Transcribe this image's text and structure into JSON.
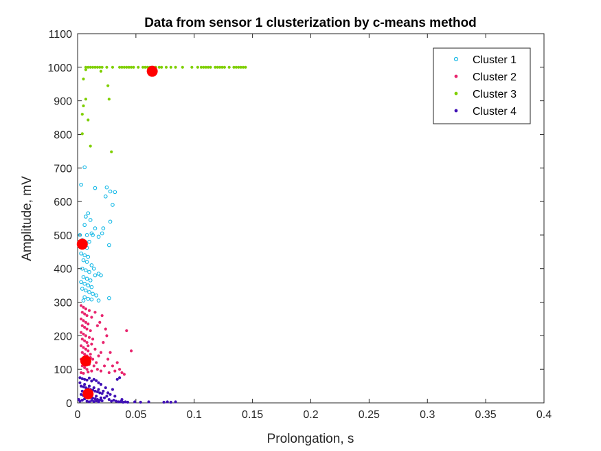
{
  "chart_data": {
    "type": "scatter",
    "title": "Data from sensor 1 clusterization by c-means method",
    "xlabel": "Prolongation, s",
    "ylabel": "Amplitude, mV",
    "xlim": [
      0,
      0.4
    ],
    "ylim": [
      0,
      1100
    ],
    "xticks": [
      0,
      0.05,
      0.1,
      0.15,
      0.2,
      0.25,
      0.3,
      0.35,
      0.4
    ],
    "xtick_labels": [
      "0",
      "0.05",
      "0.1",
      "0.15",
      "0.2",
      "0.25",
      "0.3",
      "0.35",
      "0.4"
    ],
    "yticks": [
      0,
      100,
      200,
      300,
      400,
      500,
      600,
      700,
      800,
      900,
      1000,
      1100
    ],
    "ytick_labels": [
      "0",
      "100",
      "200",
      "300",
      "400",
      "500",
      "600",
      "700",
      "800",
      "900",
      "1000",
      "1100"
    ],
    "grid": false,
    "legend_position": "top-right",
    "series": [
      {
        "name": "Cluster 1",
        "color": "#14b8e6",
        "marker": "open-circle",
        "points": [
          [
            0.003,
            650
          ],
          [
            0.006,
            702
          ],
          [
            0.015,
            640
          ],
          [
            0.025,
            642
          ],
          [
            0.028,
            630
          ],
          [
            0.032,
            628
          ],
          [
            0.009,
            565
          ],
          [
            0.007,
            555
          ],
          [
            0.011,
            545
          ],
          [
            0.015,
            520
          ],
          [
            0.006,
            530
          ],
          [
            0.012,
            505
          ],
          [
            0.021,
            505
          ],
          [
            0.028,
            540
          ],
          [
            0.024,
            615
          ],
          [
            0.03,
            590
          ],
          [
            0.002,
            500
          ],
          [
            0.008,
            500
          ],
          [
            0.013,
            500
          ],
          [
            0.022,
            520
          ],
          [
            0.027,
            470
          ],
          [
            0.004,
            485
          ],
          [
            0.01,
            480
          ],
          [
            0.018,
            495
          ],
          [
            0.003,
            445
          ],
          [
            0.006,
            440
          ],
          [
            0.009,
            435
          ],
          [
            0.005,
            425
          ],
          [
            0.008,
            420
          ],
          [
            0.012,
            410
          ],
          [
            0.004,
            400
          ],
          [
            0.007,
            395
          ],
          [
            0.01,
            390
          ],
          [
            0.015,
            380
          ],
          [
            0.018,
            385
          ],
          [
            0.02,
            380
          ],
          [
            0.005,
            375
          ],
          [
            0.008,
            370
          ],
          [
            0.011,
            365
          ],
          [
            0.006,
            355
          ],
          [
            0.009,
            350
          ],
          [
            0.012,
            345
          ],
          [
            0.004,
            340
          ],
          [
            0.007,
            335
          ],
          [
            0.01,
            330
          ],
          [
            0.013,
            325
          ],
          [
            0.016,
            320
          ],
          [
            0.006,
            315
          ],
          [
            0.009,
            310
          ],
          [
            0.012,
            308
          ],
          [
            0.018,
            305
          ],
          [
            0.027,
            312
          ],
          [
            0.005,
            305
          ],
          [
            0.003,
            360
          ],
          [
            0.014,
            400
          ],
          [
            0.008,
            462
          ]
        ]
      },
      {
        "name": "Cluster 2",
        "color": "#e8256e",
        "marker": "dot",
        "points": [
          [
            0.003,
            290
          ],
          [
            0.005,
            285
          ],
          [
            0.007,
            280
          ],
          [
            0.01,
            275
          ],
          [
            0.004,
            270
          ],
          [
            0.006,
            265
          ],
          [
            0.008,
            260
          ],
          [
            0.012,
            255
          ],
          [
            0.003,
            250
          ],
          [
            0.005,
            245
          ],
          [
            0.007,
            240
          ],
          [
            0.009,
            235
          ],
          [
            0.004,
            230
          ],
          [
            0.006,
            225
          ],
          [
            0.008,
            220
          ],
          [
            0.011,
            215
          ],
          [
            0.003,
            210
          ],
          [
            0.005,
            205
          ],
          [
            0.007,
            200
          ],
          [
            0.01,
            195
          ],
          [
            0.004,
            190
          ],
          [
            0.006,
            185
          ],
          [
            0.008,
            180
          ],
          [
            0.012,
            175
          ],
          [
            0.003,
            170
          ],
          [
            0.005,
            165
          ],
          [
            0.007,
            160
          ],
          [
            0.009,
            155
          ],
          [
            0.004,
            150
          ],
          [
            0.006,
            145
          ],
          [
            0.008,
            140
          ],
          [
            0.011,
            135
          ],
          [
            0.003,
            130
          ],
          [
            0.005,
            125
          ],
          [
            0.007,
            120
          ],
          [
            0.01,
            115
          ],
          [
            0.004,
            110
          ],
          [
            0.006,
            105
          ],
          [
            0.008,
            100
          ],
          [
            0.012,
            95
          ],
          [
            0.003,
            90
          ],
          [
            0.005,
            88
          ],
          [
            0.009,
            92
          ],
          [
            0.014,
            110
          ],
          [
            0.016,
            120
          ],
          [
            0.018,
            140
          ],
          [
            0.02,
            150
          ],
          [
            0.022,
            180
          ],
          [
            0.025,
            200
          ],
          [
            0.024,
            220
          ],
          [
            0.021,
            260
          ],
          [
            0.019,
            240
          ],
          [
            0.026,
            130
          ],
          [
            0.028,
            150
          ],
          [
            0.03,
            110
          ],
          [
            0.032,
            95
          ],
          [
            0.034,
            120
          ],
          [
            0.036,
            100
          ],
          [
            0.038,
            90
          ],
          [
            0.042,
            215
          ],
          [
            0.046,
            155
          ],
          [
            0.015,
            270
          ],
          [
            0.017,
            230
          ],
          [
            0.013,
            190
          ],
          [
            0.015,
            160
          ],
          [
            0.011,
            145
          ],
          [
            0.009,
            170
          ],
          [
            0.013,
            130
          ],
          [
            0.017,
            100
          ],
          [
            0.02,
            95
          ],
          [
            0.023,
            110
          ],
          [
            0.027,
            90
          ],
          [
            0.04,
            85
          ]
        ]
      },
      {
        "name": "Cluster 3",
        "color": "#7fcf00",
        "marker": "dot",
        "points": [
          [
            0.007,
            1000
          ],
          [
            0.009,
            1000
          ],
          [
            0.011,
            1000
          ],
          [
            0.013,
            1000
          ],
          [
            0.015,
            1000
          ],
          [
            0.017,
            1000
          ],
          [
            0.019,
            1000
          ],
          [
            0.021,
            1000
          ],
          [
            0.025,
            1000
          ],
          [
            0.03,
            1000
          ],
          [
            0.036,
            1000
          ],
          [
            0.038,
            1000
          ],
          [
            0.04,
            1000
          ],
          [
            0.042,
            1000
          ],
          [
            0.044,
            1000
          ],
          [
            0.046,
            1000
          ],
          [
            0.048,
            1000
          ],
          [
            0.052,
            1000
          ],
          [
            0.056,
            1000
          ],
          [
            0.058,
            1000
          ],
          [
            0.06,
            1000
          ],
          [
            0.062,
            1000
          ],
          [
            0.067,
            1000
          ],
          [
            0.07,
            1000
          ],
          [
            0.072,
            1000
          ],
          [
            0.076,
            1000
          ],
          [
            0.08,
            1000
          ],
          [
            0.084,
            1000
          ],
          [
            0.09,
            1000
          ],
          [
            0.098,
            1000
          ],
          [
            0.103,
            1000
          ],
          [
            0.106,
            1000
          ],
          [
            0.108,
            1000
          ],
          [
            0.11,
            1000
          ],
          [
            0.112,
            1000
          ],
          [
            0.114,
            1000
          ],
          [
            0.118,
            1000
          ],
          [
            0.12,
            1000
          ],
          [
            0.122,
            1000
          ],
          [
            0.124,
            1000
          ],
          [
            0.126,
            1000
          ],
          [
            0.13,
            1000
          ],
          [
            0.134,
            1000
          ],
          [
            0.136,
            1000
          ],
          [
            0.138,
            1000
          ],
          [
            0.14,
            1000
          ],
          [
            0.142,
            1000
          ],
          [
            0.144,
            1000
          ],
          [
            0.007,
            993
          ],
          [
            0.02,
            988
          ],
          [
            0.005,
            965
          ],
          [
            0.007,
            905
          ],
          [
            0.005,
            885
          ],
          [
            0.004,
            860
          ],
          [
            0.009,
            843
          ],
          [
            0.004,
            802
          ],
          [
            0.011,
            765
          ],
          [
            0.029,
            748
          ],
          [
            0.026,
            945
          ],
          [
            0.027,
            905
          ]
        ]
      },
      {
        "name": "Cluster 4",
        "color": "#3f10b5",
        "marker": "dot",
        "points": [
          [
            0.002,
            75
          ],
          [
            0.004,
            72
          ],
          [
            0.006,
            70
          ],
          [
            0.008,
            68
          ],
          [
            0.01,
            74
          ],
          [
            0.012,
            65
          ],
          [
            0.014,
            70
          ],
          [
            0.016,
            66
          ],
          [
            0.018,
            60
          ],
          [
            0.02,
            55
          ],
          [
            0.003,
            50
          ],
          [
            0.005,
            48
          ],
          [
            0.007,
            45
          ],
          [
            0.009,
            42
          ],
          [
            0.011,
            40
          ],
          [
            0.013,
            38
          ],
          [
            0.015,
            35
          ],
          [
            0.017,
            33
          ],
          [
            0.019,
            30
          ],
          [
            0.021,
            28
          ],
          [
            0.003,
            25
          ],
          [
            0.005,
            22
          ],
          [
            0.007,
            20
          ],
          [
            0.009,
            18
          ],
          [
            0.011,
            16
          ],
          [
            0.013,
            14
          ],
          [
            0.015,
            12
          ],
          [
            0.017,
            10
          ],
          [
            0.019,
            8
          ],
          [
            0.021,
            6
          ],
          [
            0.023,
            15
          ],
          [
            0.025,
            20
          ],
          [
            0.027,
            10
          ],
          [
            0.029,
            5
          ],
          [
            0.031,
            8
          ],
          [
            0.033,
            5
          ],
          [
            0.035,
            3
          ],
          [
            0.037,
            4
          ],
          [
            0.039,
            2
          ],
          [
            0.041,
            3
          ],
          [
            0.043,
            2
          ],
          [
            0.049,
            3
          ],
          [
            0.054,
            2
          ],
          [
            0.061,
            3
          ],
          [
            0.074,
            2
          ],
          [
            0.077,
            3
          ],
          [
            0.08,
            2
          ],
          [
            0.084,
            3
          ],
          [
            0.002,
            60
          ],
          [
            0.004,
            35
          ],
          [
            0.006,
            55
          ],
          [
            0.008,
            30
          ],
          [
            0.01,
            50
          ],
          [
            0.012,
            25
          ],
          [
            0.014,
            45
          ],
          [
            0.016,
            20
          ],
          [
            0.018,
            40
          ],
          [
            0.02,
            15
          ],
          [
            0.022,
            35
          ],
          [
            0.024,
            45
          ],
          [
            0.026,
            30
          ],
          [
            0.028,
            25
          ],
          [
            0.03,
            40
          ],
          [
            0.032,
            20
          ],
          [
            0.034,
            70
          ],
          [
            0.036,
            75
          ],
          [
            0.038,
            10
          ],
          [
            0.001,
            10
          ],
          [
            0.002,
            5
          ],
          [
            0.004,
            8
          ],
          [
            0.006,
            12
          ],
          [
            0.008,
            5
          ],
          [
            0.01,
            3
          ],
          [
            0.012,
            7
          ],
          [
            0.014,
            4
          ],
          [
            0.016,
            6
          ],
          [
            0.018,
            3
          ],
          [
            0.02,
            10
          ]
        ]
      }
    ],
    "centroids": {
      "color": "#ff0000",
      "points": [
        [
          0.064,
          988
        ],
        [
          0.004,
          473
        ],
        [
          0.007,
          125
        ],
        [
          0.009,
          27
        ]
      ]
    }
  }
}
